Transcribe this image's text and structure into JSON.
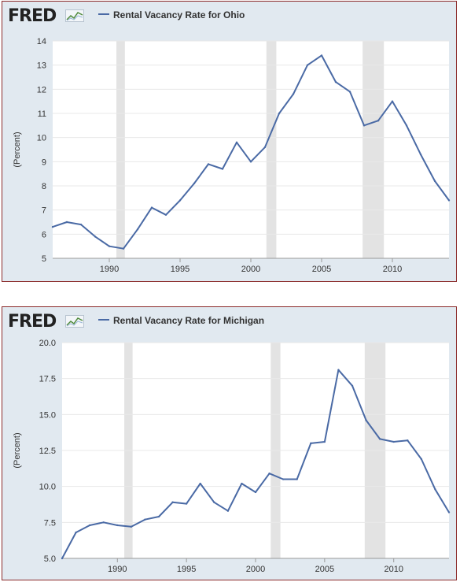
{
  "brand": {
    "logo_text": "FRED",
    "logo_icon": "fred-chart-icon"
  },
  "colors": {
    "series": "#4a6aa5",
    "recession": "#e3e3e3",
    "plot_bg": "#ffffff",
    "panel_bg": "#e1e9f0",
    "border": "#8b2a2a"
  },
  "chart_data": [
    {
      "type": "line",
      "legend": "Rental Vacancy Rate for Ohio",
      "ylabel": "(Percent)",
      "xlabel": "",
      "xlim": [
        1986,
        2014
      ],
      "ylim": [
        5,
        14
      ],
      "yticks": [
        5,
        6,
        7,
        8,
        9,
        10,
        11,
        12,
        13,
        14
      ],
      "ytick_labels": [
        "5",
        "6",
        "7",
        "8",
        "9",
        "10",
        "11",
        "12",
        "13",
        "14"
      ],
      "xticks": [
        1990,
        1995,
        2000,
        2005,
        2010
      ],
      "xtick_labels": [
        "1990",
        "1995",
        "2000",
        "2005",
        "2010"
      ],
      "recessions": [
        [
          1990.5,
          1991.1
        ],
        [
          2001.1,
          2001.8
        ],
        [
          2007.9,
          2009.4
        ]
      ],
      "x": [
        1986,
        1987,
        1988,
        1989,
        1990,
        1991,
        1992,
        1993,
        1994,
        1995,
        1996,
        1997,
        1998,
        1999,
        2000,
        2001,
        2002,
        2003,
        2004,
        2005,
        2006,
        2007,
        2008,
        2009,
        2010,
        2011,
        2012,
        2013,
        2014
      ],
      "y": [
        6.3,
        6.5,
        6.4,
        5.9,
        5.5,
        5.4,
        6.2,
        7.1,
        6.8,
        7.4,
        8.1,
        8.9,
        8.7,
        9.8,
        9.0,
        9.6,
        11.0,
        11.8,
        13.0,
        13.4,
        12.3,
        11.9,
        10.5,
        10.7,
        11.5,
        10.5,
        9.3,
        8.2,
        7.4
      ]
    },
    {
      "type": "line",
      "legend": "Rental Vacancy Rate for Michigan",
      "ylabel": "(Percent)",
      "xlabel": "",
      "xlim": [
        1986,
        2014
      ],
      "ylim": [
        5,
        20
      ],
      "yticks": [
        5,
        7.5,
        10,
        12.5,
        15,
        17.5,
        20
      ],
      "ytick_labels": [
        "5.0",
        "7.5",
        "10.0",
        "12.5",
        "15.0",
        "17.5",
        "20.0"
      ],
      "xticks": [
        1990,
        1995,
        2000,
        2005,
        2010
      ],
      "xtick_labels": [
        "1990",
        "1995",
        "2000",
        "2005",
        "2010"
      ],
      "recessions": [
        [
          1990.5,
          1991.1
        ],
        [
          2001.1,
          2001.8
        ],
        [
          2007.9,
          2009.4
        ]
      ],
      "x": [
        1986,
        1987,
        1988,
        1989,
        1990,
        1991,
        1992,
        1993,
        1994,
        1995,
        1996,
        1997,
        1998,
        1999,
        2000,
        2001,
        2002,
        2003,
        2004,
        2005,
        2006,
        2007,
        2008,
        2009,
        2010,
        2011,
        2012,
        2013,
        2014
      ],
      "y": [
        5.0,
        6.8,
        7.3,
        7.5,
        7.3,
        7.2,
        7.7,
        7.9,
        8.9,
        8.8,
        10.2,
        8.9,
        8.3,
        10.2,
        9.6,
        10.9,
        10.5,
        10.5,
        13.0,
        13.1,
        18.1,
        17.0,
        14.6,
        13.3,
        13.1,
        13.2,
        11.9,
        9.8,
        8.2
      ]
    }
  ]
}
